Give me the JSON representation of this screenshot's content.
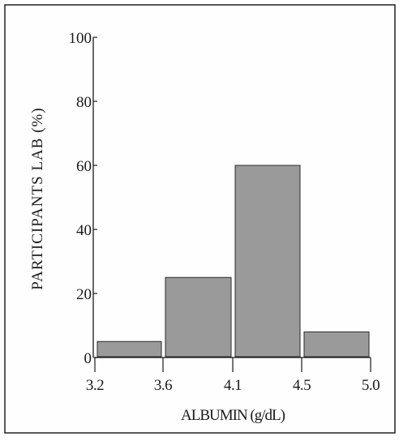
{
  "chart_data": {
    "type": "histogram",
    "title": "",
    "xlabel": "ALBUMIN (g/dL)",
    "ylabel": "PARTICIPANTS LAB (%)",
    "x_ticks": [
      "3.2",
      "3.6",
      "4.1",
      "4.5",
      "5.0"
    ],
    "y_ticks": [
      "0",
      "20",
      "40",
      "60",
      "80",
      "100"
    ],
    "ylim": [
      0,
      100
    ],
    "grid": false,
    "bins": [
      {
        "from": "3.2",
        "to": "3.6",
        "value": 5
      },
      {
        "from": "3.6",
        "to": "4.1",
        "value": 25
      },
      {
        "from": "4.1",
        "to": "4.5",
        "value": 60
      },
      {
        "from": "4.5",
        "to": "5.0",
        "value": 8
      }
    ],
    "colors": {
      "bar_fill": "#9a9a9a",
      "bar_stroke": "#2a2a2a",
      "axis": "#1a1a1a",
      "frame": "#222222"
    }
  }
}
